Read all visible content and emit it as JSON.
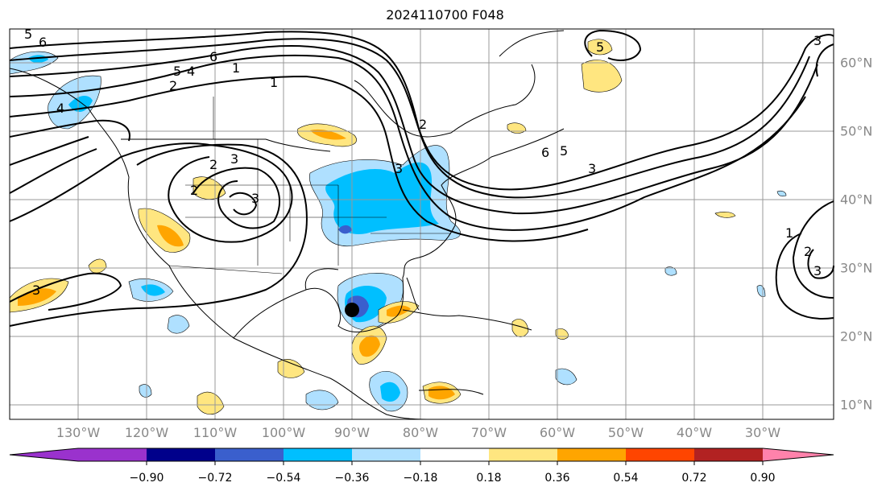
{
  "title": "2024110700 F048",
  "lon_labels": [
    "130°W",
    "120°W",
    "110°W",
    "100°W",
    "90°W",
    "80°W",
    "70°W",
    "60°W",
    "50°W",
    "40°W",
    "30°W"
  ],
  "lat_labels": [
    "60°N",
    "50°N",
    "40°N",
    "30°N",
    "20°N",
    "10°N"
  ],
  "colorbar": {
    "ticks": [
      "−0.90",
      "−0.72",
      "−0.54",
      "−0.36",
      "−0.18",
      "0.18",
      "0.36",
      "0.54",
      "0.72",
      "0.90"
    ],
    "colors": [
      "#9a32cd",
      "#00008b",
      "#3a5fcd",
      "#00bfff",
      "#afe0ff",
      "#ffffff",
      "#ffe680",
      "#ffa500",
      "#ff4500",
      "#b22222",
      "#ff82ab"
    ]
  },
  "contour_labels": [
    "6",
    "5",
    "4",
    "3",
    "2",
    "1",
    "2",
    "3",
    "3",
    "3",
    "6",
    "5",
    "3",
    "5",
    "1",
    "2",
    "3",
    "2",
    "6",
    "5",
    "4",
    "3",
    "2",
    "1"
  ],
  "marker": "storm-center"
}
